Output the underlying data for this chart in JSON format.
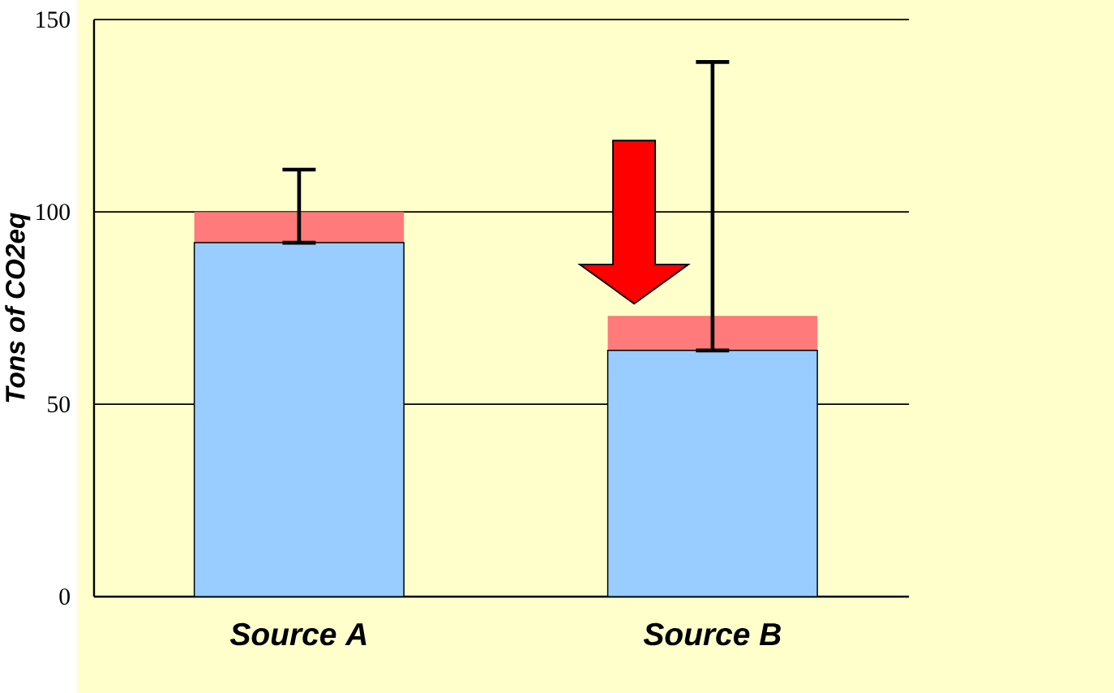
{
  "chart_data": {
    "type": "bar",
    "stacked": true,
    "ylabel": "Tons of CO2eq",
    "categories": [
      "Source A",
      "Source B"
    ],
    "series": [
      {
        "color": "#99ccff",
        "values": [
          92,
          64
        ]
      },
      {
        "color": "#ff7a7a",
        "values": [
          8,
          9
        ],
        "errors": [
          [
            92,
            111
          ],
          [
            64,
            139
          ]
        ]
      }
    ],
    "ylim": [
      0,
      150
    ],
    "yticks": [
      0,
      50,
      100,
      150
    ],
    "grid": "y"
  }
}
